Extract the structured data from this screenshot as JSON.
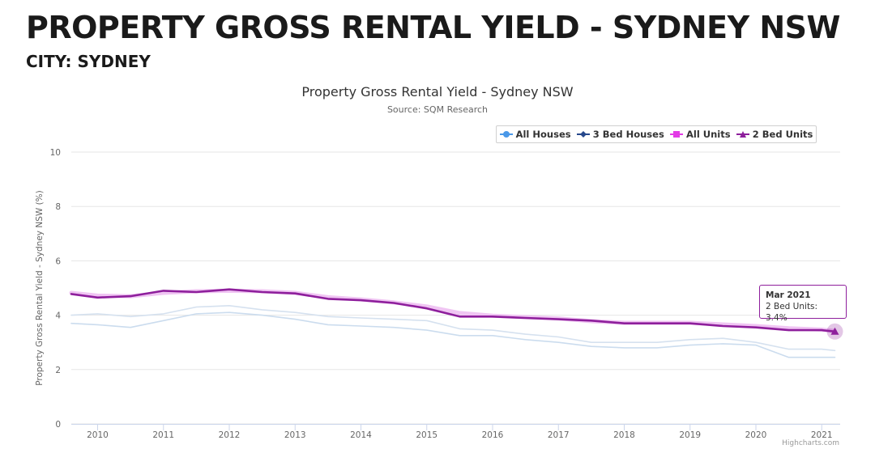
{
  "header": {
    "title": "PROPERTY GROSS RENTAL YIELD - SYDNEY NSW",
    "subtitle": "CITY: SYDNEY"
  },
  "credits": "Highcharts.com",
  "tooltip": {
    "heading": "Mar 2021",
    "body": "2 Bed Units: 3.4%"
  },
  "chart_data": {
    "type": "line",
    "title": "Property Gross Rental Yield - Sydney NSW",
    "subtitle": "Source: SQM Research",
    "xlabel": "",
    "ylabel": "Property Gross Rental Yield - Sydney NSW (%)",
    "ylim": [
      0,
      10
    ],
    "yticks": [
      0,
      2,
      4,
      6,
      8,
      10
    ],
    "xlim": [
      2009.6,
      2021.28
    ],
    "xticks": [
      "2010",
      "2011",
      "2012",
      "2013",
      "2014",
      "2015",
      "2016",
      "2017",
      "2018",
      "2019",
      "2020",
      "2021"
    ],
    "grid": "horizontal",
    "legend_position": "top-right",
    "x": [
      2009.6,
      2010.0,
      2010.5,
      2011.0,
      2011.5,
      2012.0,
      2012.5,
      2013.0,
      2013.5,
      2014.0,
      2014.5,
      2015.0,
      2015.5,
      2016.0,
      2016.5,
      2017.0,
      2017.5,
      2018.0,
      2018.5,
      2019.0,
      2019.5,
      2020.0,
      2020.5,
      2021.0,
      2021.2
    ],
    "series": [
      {
        "name": "All Houses",
        "color": "#cbdcee",
        "values": [
          3.7,
          3.65,
          3.55,
          3.8,
          4.05,
          4.1,
          4.0,
          3.85,
          3.65,
          3.6,
          3.55,
          3.45,
          3.25,
          3.25,
          3.1,
          3.0,
          2.85,
          2.8,
          2.8,
          2.9,
          2.95,
          2.9,
          2.45,
          2.45,
          2.45
        ]
      },
      {
        "name": "3 Bed Houses",
        "color": "#d5e1ef",
        "values": [
          4.0,
          4.05,
          3.95,
          4.05,
          4.3,
          4.35,
          4.2,
          4.1,
          3.95,
          3.9,
          3.85,
          3.8,
          3.5,
          3.45,
          3.3,
          3.2,
          3.0,
          3.0,
          3.0,
          3.1,
          3.15,
          3.0,
          2.75,
          2.75,
          2.7
        ]
      },
      {
        "name": "All Units",
        "color": "#f0c5f3",
        "values": [
          4.82,
          4.72,
          4.7,
          4.82,
          4.88,
          4.9,
          4.88,
          4.82,
          4.66,
          4.58,
          4.47,
          4.32,
          4.08,
          3.98,
          3.93,
          3.88,
          3.78,
          3.72,
          3.72,
          3.72,
          3.66,
          3.6,
          3.52,
          3.47,
          3.42
        ]
      },
      {
        "name": "2 Bed Units",
        "color": "#8e1f9c",
        "values": [
          4.78,
          4.65,
          4.7,
          4.9,
          4.85,
          4.95,
          4.85,
          4.8,
          4.6,
          4.55,
          4.45,
          4.25,
          3.95,
          3.95,
          3.9,
          3.85,
          3.8,
          3.7,
          3.7,
          3.7,
          3.6,
          3.55,
          3.45,
          3.45,
          3.4
        ]
      }
    ],
    "legend_colors": [
      "#4a98e8",
      "#27488c",
      "#e33be6",
      "#8e1f9c"
    ],
    "legend_symbols": [
      "circle",
      "diamond",
      "square",
      "triangle"
    ]
  }
}
